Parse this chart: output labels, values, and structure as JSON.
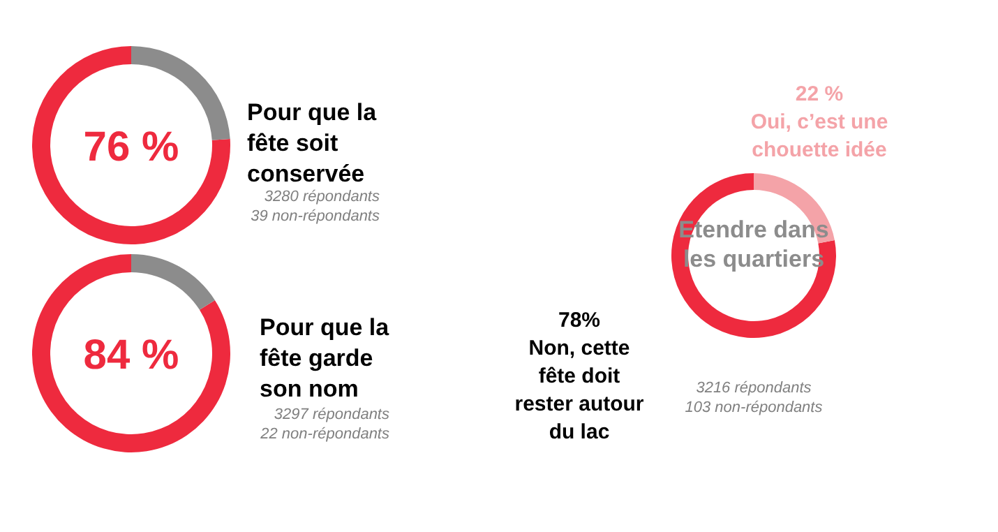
{
  "chart_data": [
    {
      "type": "donut",
      "title": "Pour que la fête soit conservée",
      "categories": [
        null,
        null
      ],
      "values": [
        76,
        24
      ],
      "colors": [
        "#ee2a3e",
        "#8c8c8c"
      ],
      "value_labels": [
        "76 %",
        null
      ],
      "annotations": [
        "3280 répondants",
        "39 non-répondants"
      ]
    },
    {
      "type": "donut",
      "title": "Pour que la fête garde son nom",
      "categories": [
        null,
        null
      ],
      "values": [
        84,
        16
      ],
      "colors": [
        "#ee2a3e",
        "#8c8c8c"
      ],
      "value_labels": [
        "84 %",
        null
      ],
      "annotations": [
        "3297 répondants",
        "22 non-répondants"
      ]
    },
    {
      "type": "donut",
      "title": "Etendre dans les quartiers",
      "categories": [
        "Non, cette fête doit rester autour du lac",
        "Oui, c’est une chouette idée"
      ],
      "values": [
        78,
        22
      ],
      "colors": [
        "#ee2a3e",
        "#f4a3a8"
      ],
      "value_labels": [
        "78%",
        "22 %"
      ],
      "annotations": [
        "3216 répondants",
        "103 non-répondants"
      ]
    }
  ]
}
